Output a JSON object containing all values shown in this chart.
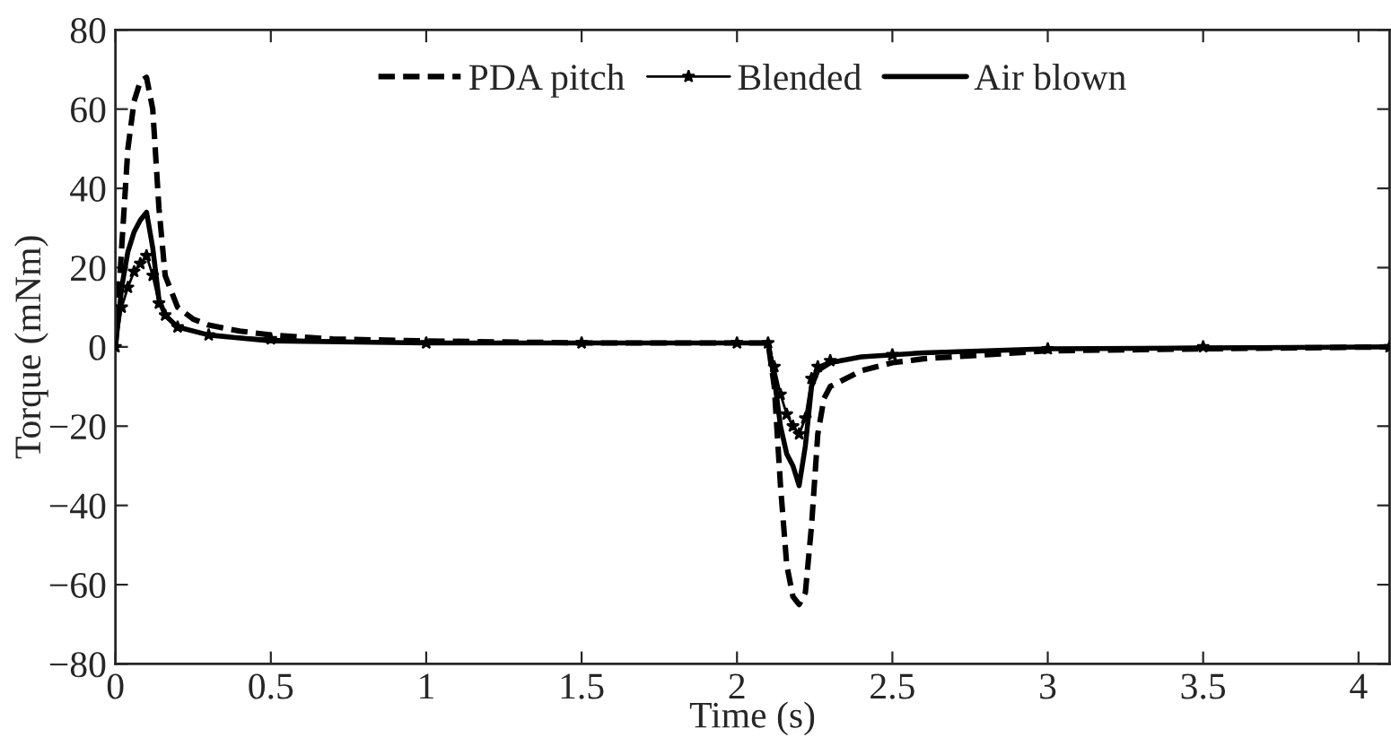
{
  "chart_data": {
    "type": "line",
    "xlabel": "Time (s)",
    "ylabel": "Torque (mNm)",
    "xlim": [
      0,
      4.1
    ],
    "ylim": [
      -80,
      80
    ],
    "xticks": [
      0,
      0.5,
      1,
      1.5,
      2,
      2.5,
      3,
      3.5,
      4
    ],
    "yticks": [
      {
        "value": -80,
        "label": "−80"
      },
      {
        "value": -60,
        "label": "−60"
      },
      {
        "value": -40,
        "label": "−40"
      },
      {
        "value": -20,
        "label": "−20"
      },
      0,
      20,
      40,
      60,
      80
    ],
    "grid": false,
    "legend": "top",
    "series": [
      {
        "name": "PDA pitch",
        "color": "#000000",
        "line_style": "dashed",
        "marker": "none",
        "x": [
          0,
          0.02,
          0.04,
          0.06,
          0.08,
          0.1,
          0.12,
          0.14,
          0.16,
          0.2,
          0.25,
          0.3,
          0.4,
          0.5,
          0.7,
          1.0,
          1.5,
          2.0,
          2.1,
          2.12,
          2.14,
          2.16,
          2.18,
          2.2,
          2.22,
          2.24,
          2.26,
          2.28,
          2.3,
          2.4,
          2.5,
          2.6,
          2.8,
          3.0,
          3.5,
          4.1
        ],
        "values": [
          0,
          25,
          50,
          62,
          67,
          68,
          60,
          35,
          18,
          10,
          7,
          5.5,
          4,
          3,
          2,
          1.5,
          1,
          1,
          1,
          -10,
          -35,
          -55,
          -63,
          -65,
          -62,
          -45,
          -22,
          -13,
          -10,
          -6,
          -4,
          -3,
          -2,
          -1,
          -0.5,
          0
        ]
      },
      {
        "name": "Blended",
        "color": "#000000",
        "line_style": "solid",
        "marker": "star",
        "x": [
          0,
          0.02,
          0.04,
          0.06,
          0.08,
          0.1,
          0.12,
          0.14,
          0.16,
          0.2,
          0.3,
          0.5,
          1.0,
          1.5,
          2.0,
          2.1,
          2.12,
          2.14,
          2.16,
          2.18,
          2.2,
          2.22,
          2.24,
          2.26,
          2.3,
          2.5,
          3.0,
          3.5,
          4.1
        ],
        "values": [
          0,
          10,
          15,
          19,
          21,
          23,
          18,
          11,
          8,
          5,
          3,
          2,
          1,
          1,
          1,
          1,
          -5,
          -12,
          -17,
          -20,
          -22,
          -18,
          -8,
          -5,
          -3.5,
          -2,
          -0.5,
          0,
          0
        ]
      },
      {
        "name": "Air blown",
        "color": "#000000",
        "line_style": "solid",
        "marker": "none",
        "x": [
          0,
          0.02,
          0.04,
          0.06,
          0.08,
          0.1,
          0.12,
          0.14,
          0.16,
          0.2,
          0.3,
          0.5,
          1.0,
          2.0,
          2.1,
          2.12,
          2.14,
          2.16,
          2.18,
          2.2,
          2.22,
          2.24,
          2.26,
          2.3,
          2.4,
          2.6,
          3.0,
          4.1
        ],
        "values": [
          0,
          15,
          24,
          29,
          32,
          34,
          25,
          12,
          8,
          5,
          3,
          1.5,
          1,
          1,
          1,
          -8,
          -20,
          -27,
          -30,
          -35,
          -25,
          -10,
          -6,
          -4,
          -2.5,
          -1.5,
          -0.5,
          0
        ]
      }
    ]
  }
}
